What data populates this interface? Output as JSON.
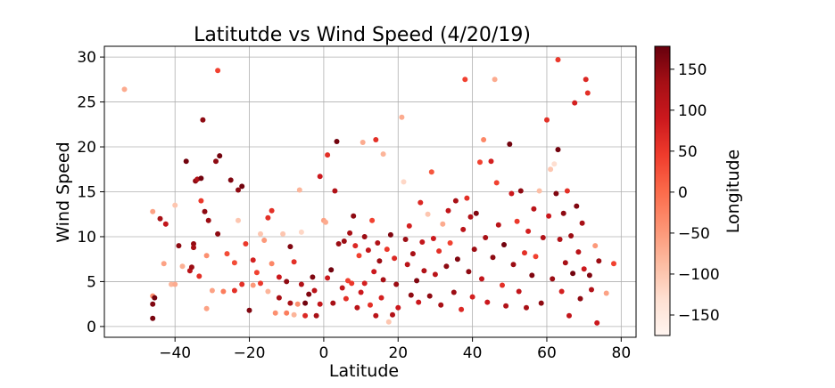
{
  "chart_data": {
    "type": "scatter",
    "title": "Latitutde vs Wind Speed (4/20/19)",
    "xlabel": "Latitude",
    "ylabel": "Wind Speed",
    "xlim": [
      -59,
      84
    ],
    "ylim": [
      -1.2,
      31.2
    ],
    "x_ticks": [
      -40,
      -20,
      0,
      20,
      40,
      60,
      80
    ],
    "x_tick_labels": [
      "−40",
      "−20",
      "0",
      "20",
      "40",
      "60",
      "80"
    ],
    "y_ticks": [
      0,
      5,
      10,
      15,
      20,
      25,
      30
    ],
    "y_tick_labels": [
      "0",
      "5",
      "10",
      "15",
      "20",
      "25",
      "30"
    ],
    "grid": true,
    "colorbar": {
      "label": "Longitude",
      "colormap": "Reds",
      "range": [
        -175,
        178
      ],
      "ticks": [
        150,
        100,
        50,
        0,
        -50,
        -100,
        -150
      ],
      "tick_labels": [
        "150",
        "100",
        "50",
        "0",
        "−50",
        "−100",
        "−150"
      ]
    },
    "points": [
      [
        -53.6,
        26.4,
        -70
      ],
      [
        -46,
        12.8,
        -60
      ],
      [
        -46,
        3.4,
        -40
      ],
      [
        -45.5,
        3.2,
        170
      ],
      [
        -46,
        2.5,
        160
      ],
      [
        -46,
        0.9,
        165
      ],
      [
        -44,
        12,
        130
      ],
      [
        -43,
        7,
        -60
      ],
      [
        -42.5,
        11.4,
        100
      ],
      [
        -41,
        4.7,
        -80
      ],
      [
        -40,
        4.7,
        -70
      ],
      [
        -40,
        13.5,
        -100
      ],
      [
        -39,
        9,
        150
      ],
      [
        -38,
        6.7,
        -75
      ],
      [
        -37,
        18.4,
        170
      ],
      [
        -36,
        6.2,
        110
      ],
      [
        -35.5,
        6.6,
        140
      ],
      [
        -35,
        9.2,
        145
      ],
      [
        -35,
        8.8,
        130
      ],
      [
        -34.5,
        16.2,
        150
      ],
      [
        -34,
        16.4,
        120
      ],
      [
        -33.5,
        5.6,
        60
      ],
      [
        -33,
        16.5,
        170
      ],
      [
        -33,
        14,
        50
      ],
      [
        -32.5,
        23,
        150
      ],
      [
        -32,
        12.8,
        150
      ],
      [
        -31.5,
        7.9,
        -40
      ],
      [
        -31.5,
        2,
        -60
      ],
      [
        -31,
        11.8,
        140
      ],
      [
        -30,
        4,
        -60
      ],
      [
        -29,
        18.4,
        150
      ],
      [
        -28.5,
        28.5,
        40
      ],
      [
        -28.5,
        10.3,
        150
      ],
      [
        -28,
        19,
        170
      ],
      [
        -27,
        3.9,
        -20
      ],
      [
        -26,
        8.1,
        30
      ],
      [
        -25,
        16.3,
        160
      ],
      [
        -24,
        4,
        60
      ],
      [
        -24,
        7.1,
        30
      ],
      [
        -23,
        15.2,
        150
      ],
      [
        -23,
        11.8,
        -100
      ],
      [
        -22,
        15.6,
        170
      ],
      [
        -22,
        4.7,
        60
      ],
      [
        -21,
        9.2,
        50
      ],
      [
        -20,
        1.8,
        160
      ],
      [
        -19,
        7.4,
        80
      ],
      [
        -19,
        4.6,
        -50
      ],
      [
        -18,
        6,
        40
      ],
      [
        -17,
        10.3,
        -100
      ],
      [
        -17,
        4.8,
        50
      ],
      [
        -16,
        9.6,
        -50
      ],
      [
        -15,
        12.1,
        60
      ],
      [
        -15,
        3.9,
        -80
      ],
      [
        -14,
        12.9,
        60
      ],
      [
        -14,
        7,
        -30
      ],
      [
        -13,
        1.5,
        -40
      ],
      [
        -12,
        3.2,
        130
      ],
      [
        -12,
        5.5,
        90
      ],
      [
        -11,
        10.3,
        -100
      ],
      [
        -10,
        5,
        150
      ],
      [
        -10,
        1.5,
        -20
      ],
      [
        -9,
        8.9,
        160
      ],
      [
        -9,
        2.6,
        130
      ],
      [
        -8,
        7.2,
        60
      ],
      [
        -8,
        1.3,
        -80
      ],
      [
        -7,
        2.5,
        -40
      ],
      [
        -6.5,
        15.2,
        -80
      ],
      [
        -6,
        10.5,
        -120
      ],
      [
        -6,
        4.7,
        120
      ],
      [
        -5,
        2.6,
        170
      ],
      [
        -5,
        1.2,
        70
      ],
      [
        -4,
        3.6,
        160
      ],
      [
        -3,
        5.5,
        160
      ],
      [
        -2.5,
        4,
        110
      ],
      [
        -2,
        1.2,
        130
      ],
      [
        -1,
        16.7,
        90
      ],
      [
        -1,
        2.5,
        100
      ],
      [
        0,
        11.8,
        -60
      ],
      [
        0.5,
        11.6,
        -70
      ],
      [
        1,
        19.1,
        60
      ],
      [
        1,
        5.4,
        90
      ],
      [
        2,
        6.3,
        170
      ],
      [
        2.5,
        2.6,
        130
      ],
      [
        3,
        15.1,
        120
      ],
      [
        3.5,
        20.6,
        170
      ],
      [
        4,
        9.2,
        140
      ],
      [
        5,
        4.3,
        100
      ],
      [
        5.5,
        9.5,
        140
      ],
      [
        6,
        3.1,
        60
      ],
      [
        6.5,
        5.1,
        40
      ],
      [
        7,
        10.4,
        130
      ],
      [
        7.5,
        4.8,
        50
      ],
      [
        8,
        12.3,
        150
      ],
      [
        8.5,
        9,
        70
      ],
      [
        9,
        2.1,
        110
      ],
      [
        9.5,
        7.9,
        40
      ],
      [
        10,
        3.8,
        90
      ],
      [
        10.5,
        20.5,
        -70
      ],
      [
        11,
        10,
        140
      ],
      [
        11,
        4.8,
        80
      ],
      [
        12,
        8.5,
        100
      ],
      [
        12.5,
        2.4,
        60
      ],
      [
        13,
        11.8,
        40
      ],
      [
        13.5,
        6.1,
        90
      ],
      [
        14,
        20.8,
        60
      ],
      [
        14,
        1.2,
        110
      ],
      [
        14.5,
        9.3,
        120
      ],
      [
        15,
        7.3,
        140
      ],
      [
        15.5,
        3.2,
        80
      ],
      [
        16,
        19.2,
        -80
      ],
      [
        16,
        5.2,
        130
      ],
      [
        17,
        8.6,
        50
      ],
      [
        17.5,
        0.5,
        -100
      ],
      [
        18,
        10.2,
        160
      ],
      [
        18.5,
        1.3,
        120
      ],
      [
        19,
        7.6,
        70
      ],
      [
        19.5,
        4.7,
        140
      ],
      [
        20,
        2.1,
        90
      ],
      [
        21,
        23.3,
        -70
      ],
      [
        21.5,
        16.1,
        -120
      ],
      [
        22,
        9.7,
        140
      ],
      [
        22.5,
        6.9,
        110
      ],
      [
        23,
        11.2,
        80
      ],
      [
        23.5,
        3.5,
        150
      ],
      [
        24,
        8.1,
        130
      ],
      [
        25,
        5.1,
        160
      ],
      [
        25.5,
        2.7,
        90
      ],
      [
        26,
        13.8,
        70
      ],
      [
        26.5,
        9.4,
        100
      ],
      [
        27,
        6.2,
        120
      ],
      [
        28,
        12.5,
        -100
      ],
      [
        28.5,
        3.4,
        150
      ],
      [
        29,
        17.2,
        20
      ],
      [
        29.5,
        9.8,
        90
      ],
      [
        30,
        5.8,
        110
      ],
      [
        31,
        8.4,
        60
      ],
      [
        31.5,
        2.4,
        130
      ],
      [
        32,
        11.4,
        -70
      ],
      [
        33,
        6.7,
        150
      ],
      [
        33.5,
        12.9,
        100
      ],
      [
        34,
        9.3,
        40
      ],
      [
        35,
        3.8,
        140
      ],
      [
        35.5,
        14,
        130
      ],
      [
        36,
        7.5,
        160
      ],
      [
        37,
        1.9,
        70
      ],
      [
        37.5,
        10.8,
        110
      ],
      [
        38,
        27.5,
        40
      ],
      [
        38.5,
        14.3,
        60
      ],
      [
        39,
        6.1,
        150
      ],
      [
        39.5,
        12.2,
        120
      ],
      [
        40,
        3.3,
        80
      ],
      [
        40.5,
        8.6,
        140
      ],
      [
        41,
        12.6,
        160
      ],
      [
        42,
        18.3,
        40
      ],
      [
        42.5,
        5.3,
        100
      ],
      [
        43,
        20.8,
        -30
      ],
      [
        43.5,
        9.9,
        130
      ],
      [
        44,
        2.7,
        90
      ],
      [
        45,
        18.4,
        80
      ],
      [
        45.5,
        7.7,
        150
      ],
      [
        46,
        27.5,
        -70
      ],
      [
        46.5,
        16,
        40
      ],
      [
        47,
        11.3,
        110
      ],
      [
        48,
        4.6,
        60
      ],
      [
        48.5,
        9.1,
        170
      ],
      [
        49,
        2.3,
        120
      ],
      [
        50,
        20.3,
        170
      ],
      [
        50.5,
        14.8,
        90
      ],
      [
        51,
        6.9,
        140
      ],
      [
        52,
        11.7,
        50
      ],
      [
        52.5,
        3.9,
        100
      ],
      [
        53,
        15.1,
        150
      ],
      [
        54,
        8.2,
        60
      ],
      [
        54.5,
        2.1,
        130
      ],
      [
        55,
        10.6,
        80
      ],
      [
        56,
        5.7,
        160
      ],
      [
        56.5,
        13.1,
        110
      ],
      [
        57,
        7.8,
        40
      ],
      [
        58,
        15.1,
        -90
      ],
      [
        58.5,
        2.6,
        150
      ],
      [
        59,
        9.9,
        120
      ],
      [
        60,
        23,
        60
      ],
      [
        60.5,
        12.3,
        90
      ],
      [
        61,
        17.5,
        -100
      ],
      [
        61.5,
        5.3,
        140
      ],
      [
        62,
        18.1,
        -130
      ],
      [
        62.5,
        14.8,
        160
      ],
      [
        63,
        29.7,
        50
      ],
      [
        63,
        19.7,
        170
      ],
      [
        63.5,
        9.7,
        120
      ],
      [
        64,
        3.9,
        80
      ],
      [
        64.5,
        12.6,
        150
      ],
      [
        65,
        7.1,
        130
      ],
      [
        65.5,
        15.1,
        60
      ],
      [
        66,
        1.2,
        100
      ],
      [
        66.5,
        10.1,
        140
      ],
      [
        67,
        5.9,
        170
      ],
      [
        67.5,
        24.9,
        80
      ],
      [
        68,
        13.4,
        160
      ],
      [
        68.5,
        8.3,
        110
      ],
      [
        69,
        3.1,
        150
      ],
      [
        69.5,
        11.5,
        130
      ],
      [
        70,
        6.4,
        90
      ],
      [
        70.5,
        27.5,
        70
      ],
      [
        71,
        26,
        60
      ],
      [
        71.5,
        5.7,
        160
      ],
      [
        72,
        4.1,
        120
      ],
      [
        73,
        9,
        -50
      ],
      [
        73.5,
        0.4,
        90
      ],
      [
        74,
        7.3,
        140
      ],
      [
        76,
        3.7,
        -60
      ],
      [
        78,
        7,
        40
      ]
    ]
  }
}
